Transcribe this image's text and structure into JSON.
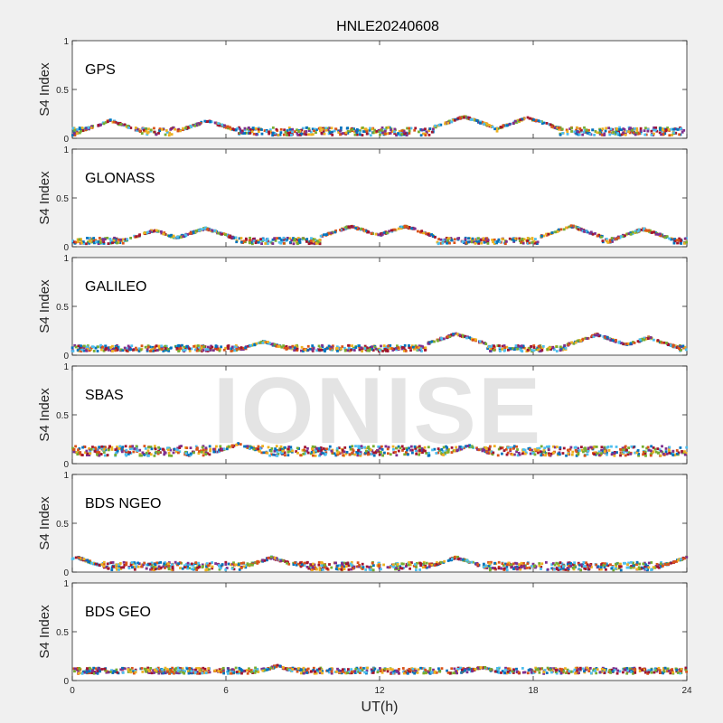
{
  "title": "HNLE20240608",
  "xlabel": "UT(h)",
  "ylabel": "S4 Index",
  "watermark": "IONISE",
  "x_ticks": [
    "0",
    "6",
    "12",
    "18",
    "24"
  ],
  "y_ticks": [
    "0",
    "0.5",
    "1"
  ],
  "colors": [
    "#0072BD",
    "#D95319",
    "#EDB120",
    "#7E2F8E",
    "#77AC30",
    "#4DBEEE",
    "#A2142F"
  ],
  "chart_data": [
    {
      "type": "scatter",
      "label": "GPS",
      "xlim": [
        0,
        24
      ],
      "ylim": [
        0,
        1
      ],
      "xlabel": "UT(h)",
      "ylabel": "S4 Index",
      "base_level": 0.07,
      "spread": 0.04,
      "peaks": [
        [
          1.5,
          0.18
        ],
        [
          5.3,
          0.18
        ],
        [
          15.3,
          0.22
        ],
        [
          17.8,
          0.21
        ]
      ]
    },
    {
      "type": "scatter",
      "label": "GLONASS",
      "xlim": [
        0,
        24
      ],
      "ylim": [
        0,
        1
      ],
      "xlabel": "UT(h)",
      "ylabel": "S4 Index",
      "base_level": 0.06,
      "spread": 0.03,
      "peaks": [
        [
          3.2,
          0.17
        ],
        [
          5.2,
          0.19
        ],
        [
          10.9,
          0.21
        ],
        [
          13.0,
          0.21
        ],
        [
          19.5,
          0.21
        ],
        [
          22.3,
          0.18
        ]
      ]
    },
    {
      "type": "scatter",
      "label": "GALILEO",
      "xlim": [
        0,
        24
      ],
      "ylim": [
        0,
        1
      ],
      "xlabel": "UT(h)",
      "ylabel": "S4 Index",
      "base_level": 0.07,
      "spread": 0.03,
      "peaks": [
        [
          7.5,
          0.14
        ],
        [
          15.0,
          0.22
        ],
        [
          20.5,
          0.21
        ],
        [
          22.5,
          0.18
        ]
      ]
    },
    {
      "type": "scatter",
      "label": "SBAS",
      "xlim": [
        0,
        24
      ],
      "ylim": [
        0,
        1
      ],
      "xlabel": "UT(h)",
      "ylabel": "S4 Index",
      "base_level": 0.13,
      "spread": 0.05,
      "peaks": [
        [
          6.5,
          0.2
        ],
        [
          15.5,
          0.18
        ]
      ]
    },
    {
      "type": "scatter",
      "label": "BDS NGEO",
      "xlim": [
        0,
        24
      ],
      "ylim": [
        0,
        1
      ],
      "xlabel": "UT(h)",
      "ylabel": "S4 Index",
      "base_level": 0.06,
      "spread": 0.04,
      "peaks": [
        [
          0.2,
          0.15
        ],
        [
          7.8,
          0.15
        ],
        [
          15.0,
          0.15
        ],
        [
          24.0,
          0.15
        ]
      ]
    },
    {
      "type": "scatter",
      "label": "BDS GEO",
      "xlim": [
        0,
        24
      ],
      "ylim": [
        0,
        1
      ],
      "xlabel": "UT(h)",
      "ylabel": "S4 Index",
      "base_level": 0.1,
      "spread": 0.03,
      "peaks": [
        [
          8.0,
          0.15
        ],
        [
          16.0,
          0.14
        ]
      ]
    }
  ]
}
